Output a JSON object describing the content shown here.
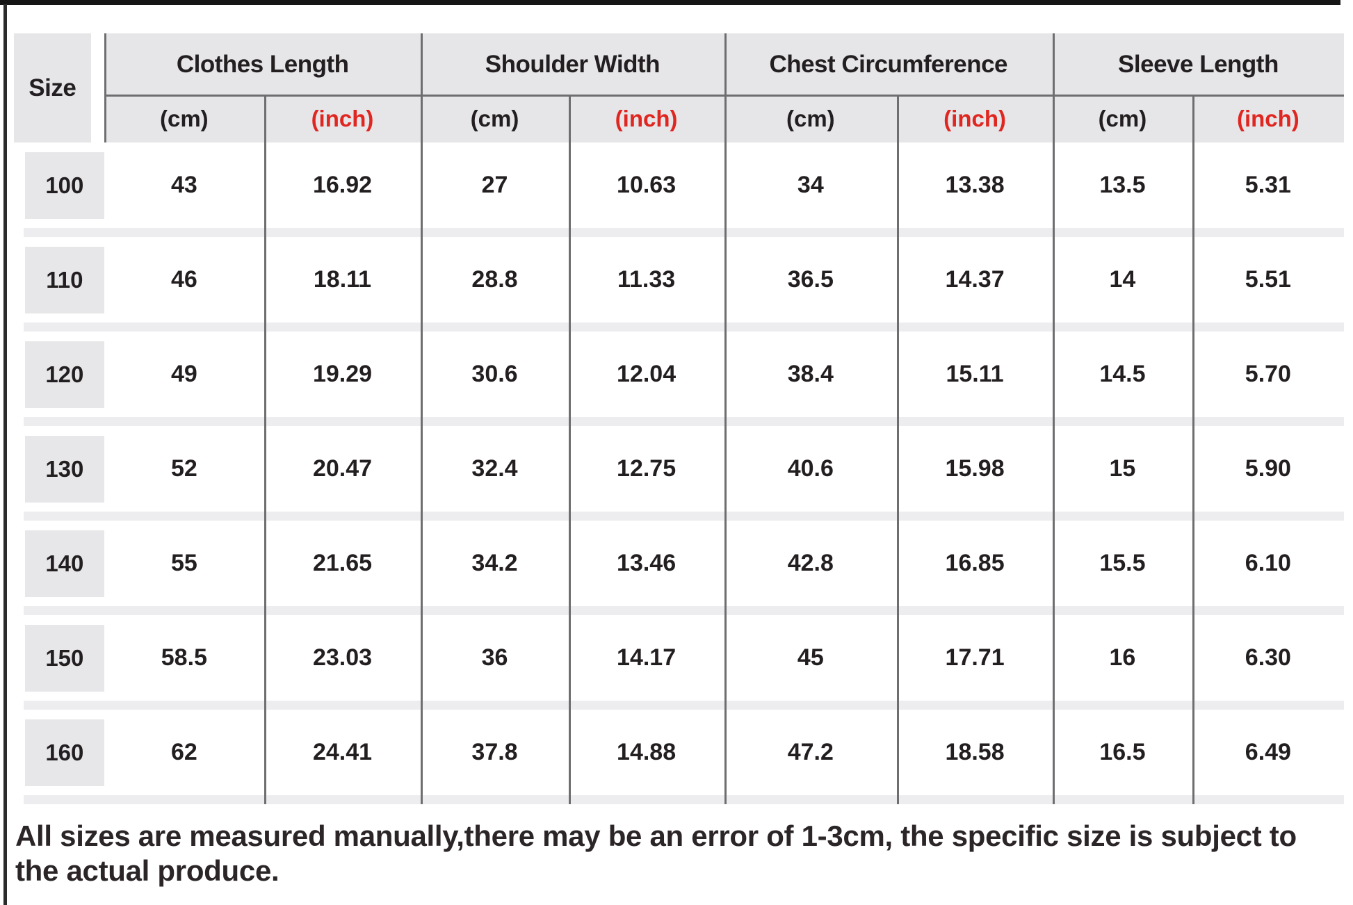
{
  "chart_data": {
    "type": "table",
    "row_header": "Size",
    "column_groups": [
      "Clothes Length",
      "Shoulder Width",
      "Chest Circumference",
      "Sleeve Length"
    ],
    "units": [
      "(cm)",
      "(inch)"
    ],
    "rows": [
      {
        "size": "100",
        "values": [
          "43",
          "16.92",
          "27",
          "10.63",
          "34",
          "13.38",
          "13.5",
          "5.31"
        ]
      },
      {
        "size": "110",
        "values": [
          "46",
          "18.11",
          "28.8",
          "11.33",
          "36.5",
          "14.37",
          "14",
          "5.51"
        ]
      },
      {
        "size": "120",
        "values": [
          "49",
          "19.29",
          "30.6",
          "12.04",
          "38.4",
          "15.11",
          "14.5",
          "5.70"
        ]
      },
      {
        "size": "130",
        "values": [
          "52",
          "20.47",
          "32.4",
          "12.75",
          "40.6",
          "15.98",
          "15",
          "5.90"
        ]
      },
      {
        "size": "140",
        "values": [
          "55",
          "21.65",
          "34.2",
          "13.46",
          "42.8",
          "16.85",
          "15.5",
          "6.10"
        ]
      },
      {
        "size": "150",
        "values": [
          "58.5",
          "23.03",
          "36",
          "14.17",
          "45",
          "17.71",
          "16",
          "6.30"
        ]
      },
      {
        "size": "160",
        "values": [
          "62",
          "24.41",
          "37.8",
          "14.88",
          "47.2",
          "18.58",
          "16.5",
          "6.49"
        ]
      }
    ]
  },
  "footer_note": "All sizes are measured manually,there may be an error of 1-3cm, the specific size is subject to the actual produce.",
  "colors": {
    "accent_red": "#e02620",
    "header_bg": "#e6e6e8",
    "size_block_bg": "#e7e7e9",
    "row_separator": "#ededf0",
    "rule_dark": "#6e6e70",
    "text_dark": "#231f20"
  }
}
